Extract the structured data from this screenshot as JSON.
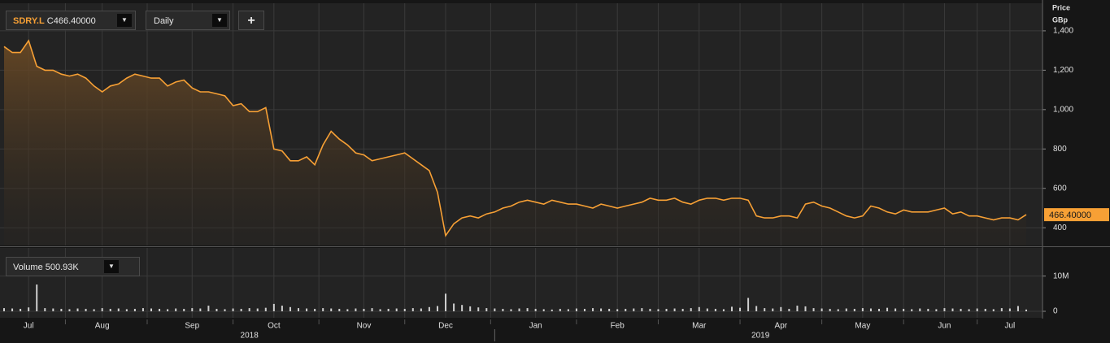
{
  "toolbar": {
    "symbol": "SDRY.L",
    "close_prefix": "C",
    "close": "466.40000",
    "interval": "Daily",
    "add": "+",
    "dropdown": "▼"
  },
  "chart_data": [
    {
      "type": "line",
      "axis_title": [
        "Price",
        "GBp"
      ],
      "series": [
        {
          "name": "SDRY.L",
          "color": "#f7a035",
          "last_label": "466.40000",
          "values": [
            1320,
            1290,
            1290,
            1350,
            1220,
            1200,
            1200,
            1180,
            1170,
            1180,
            1160,
            1120,
            1090,
            1120,
            1130,
            1160,
            1180,
            1170,
            1160,
            1160,
            1120,
            1140,
            1150,
            1110,
            1090,
            1090,
            1080,
            1070,
            1020,
            1030,
            990,
            990,
            1010,
            800,
            790,
            740,
            740,
            760,
            720,
            820,
            890,
            850,
            820,
            780,
            770,
            740,
            750,
            760,
            770,
            780,
            750,
            720,
            690,
            580,
            360,
            420,
            450,
            460,
            450,
            470,
            480,
            500,
            510,
            530,
            540,
            530,
            520,
            540,
            530,
            520,
            520,
            510,
            500,
            520,
            510,
            500,
            510,
            520,
            530,
            550,
            540,
            540,
            550,
            530,
            520,
            540,
            550,
            550,
            540,
            550,
            550,
            540,
            460,
            450,
            450,
            460,
            460,
            450,
            520,
            530,
            510,
            500,
            480,
            460,
            450,
            460,
            510,
            500,
            480,
            470,
            490,
            480,
            480,
            480,
            490,
            500,
            470,
            480,
            460,
            460,
            450,
            440,
            450,
            450,
            440,
            466.4
          ]
        }
      ],
      "ylim": [
        310,
        1540
      ],
      "yticks": [
        400,
        600,
        800,
        {
          "value": 1000,
          "label": "1,000"
        },
        {
          "value": 1200,
          "label": "1,200"
        },
        {
          "value": 1400,
          "label": "1,400"
        }
      ],
      "grid": true
    },
    {
      "type": "bar",
      "legend_label": "Volume",
      "last_label": "500.93K",
      "series": [
        {
          "name": "Volume",
          "color": "#cfcfcf",
          "values": [
            900000,
            800000,
            700000,
            1100000,
            7600000,
            900000,
            800000,
            700000,
            600000,
            800000,
            700000,
            600000,
            900000,
            700000,
            800000,
            600000,
            700000,
            900000,
            800000,
            700000,
            600000,
            800000,
            700000,
            900000,
            800000,
            1600000,
            700000,
            600000,
            800000,
            700000,
            900000,
            800000,
            1000000,
            2100000,
            1600000,
            1200000,
            900000,
            800000,
            700000,
            900000,
            800000,
            700000,
            600000,
            800000,
            700000,
            900000,
            600000,
            700000,
            800000,
            700000,
            900000,
            800000,
            1200000,
            1500000,
            5000000,
            2200000,
            1800000,
            1400000,
            1100000,
            900000,
            800000,
            700000,
            600000,
            800000,
            900000,
            700000,
            600000,
            500000,
            700000,
            600000,
            800000,
            700000,
            900000,
            800000,
            700000,
            600000,
            700000,
            800000,
            900000,
            700000,
            600000,
            700000,
            800000,
            700000,
            900000,
            1200000,
            800000,
            700000,
            600000,
            1300000,
            1000000,
            3800000,
            1500000,
            900000,
            800000,
            1200000,
            700000,
            1600000,
            1400000,
            900000,
            800000,
            700000,
            600000,
            800000,
            700000,
            900000,
            800000,
            700000,
            1000000,
            800000,
            700000,
            600000,
            800000,
            700000,
            600000,
            900000,
            800000,
            700000,
            600000,
            800000,
            700000,
            600000,
            900000,
            800000,
            1500000,
            500930
          ]
        }
      ],
      "ylim": [
        0,
        18000000
      ],
      "yticks": [
        0,
        {
          "value": 10000000,
          "label": "10M"
        }
      ],
      "categories": [
        null,
        null,
        null,
        "Jul",
        null,
        null,
        null,
        null,
        null,
        null,
        null,
        null,
        "Aug",
        null,
        null,
        null,
        null,
        null,
        null,
        null,
        null,
        null,
        null,
        "Sep",
        null,
        null,
        null,
        null,
        null,
        null,
        null,
        null,
        null,
        "Oct",
        null,
        null,
        null,
        null,
        null,
        null,
        null,
        null,
        null,
        null,
        "Nov",
        null,
        null,
        null,
        null,
        null,
        null,
        null,
        null,
        null,
        "Dec",
        null,
        null,
        null,
        null,
        null,
        null,
        null,
        null,
        null,
        null,
        "Jan",
        null,
        null,
        null,
        null,
        null,
        null,
        null,
        null,
        null,
        "Feb",
        null,
        null,
        null,
        null,
        null,
        null,
        null,
        null,
        null,
        "Mar",
        null,
        null,
        null,
        null,
        null,
        null,
        null,
        null,
        null,
        "Apr",
        null,
        null,
        null,
        null,
        null,
        null,
        null,
        null,
        null,
        "May",
        null,
        null,
        null,
        null,
        null,
        null,
        null,
        null,
        null,
        "Jun",
        null,
        null,
        null,
        null,
        null,
        null,
        null,
        "Jul",
        null,
        null
      ],
      "years": [
        {
          "label": "2018",
          "from": 0
        },
        {
          "label": "2019",
          "from": 60
        }
      ]
    }
  ]
}
